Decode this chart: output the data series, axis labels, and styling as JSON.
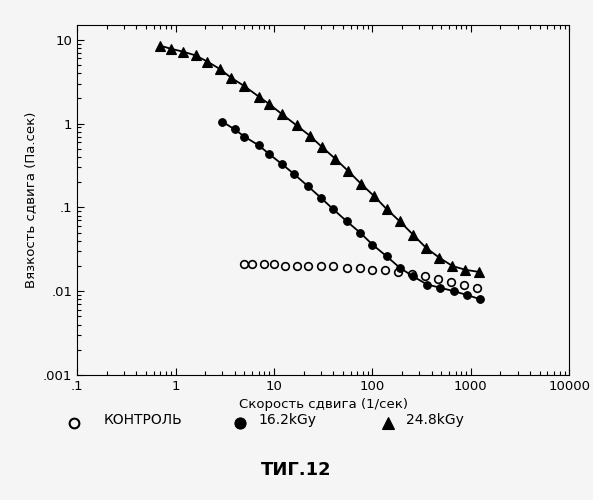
{
  "title": "ΤИГ.12",
  "xlabel": "Скорость сдвига (1/сек)",
  "ylabel": "Вязкость сдвига (Па.сек)",
  "xlim": [
    0.1,
    10000
  ],
  "ylim": [
    0.001,
    15
  ],
  "xticks": [
    0.1,
    1,
    10,
    100,
    1000,
    10000
  ],
  "xticklabels": [
    ".1",
    "1",
    "10",
    "100",
    "1000",
    "10000"
  ],
  "yticks": [
    0.001,
    0.01,
    0.1,
    1,
    10
  ],
  "yticklabels": [
    ".001",
    ".01",
    ".1",
    "1",
    "10"
  ],
  "series_control": {
    "x": [
      5,
      6,
      8,
      10,
      13,
      17,
      22,
      30,
      40,
      55,
      75,
      100,
      135,
      180,
      250,
      340,
      460,
      630,
      850,
      1150
    ],
    "y": [
      0.021,
      0.021,
      0.021,
      0.021,
      0.02,
      0.02,
      0.02,
      0.02,
      0.02,
      0.019,
      0.019,
      0.018,
      0.018,
      0.017,
      0.016,
      0.015,
      0.014,
      0.013,
      0.012,
      0.011
    ],
    "label": "КОНТРОЛЬ",
    "marker": "o",
    "fillstyle": "none",
    "color": "#000000",
    "linestyle": "none"
  },
  "series_16k": {
    "x": [
      3,
      4,
      5,
      7,
      9,
      12,
      16,
      22,
      30,
      40,
      55,
      75,
      100,
      140,
      190,
      260,
      360,
      490,
      670,
      920,
      1250
    ],
    "y": [
      1.05,
      0.85,
      0.7,
      0.55,
      0.43,
      0.33,
      0.25,
      0.18,
      0.13,
      0.095,
      0.068,
      0.05,
      0.036,
      0.026,
      0.019,
      0.015,
      0.012,
      0.011,
      0.01,
      0.009,
      0.008
    ],
    "label": "16.2kGy",
    "marker": "o",
    "fillstyle": "full",
    "color": "#000000",
    "linestyle": "-"
  },
  "series_248k": {
    "x": [
      0.7,
      0.9,
      1.2,
      1.6,
      2.1,
      2.8,
      3.7,
      5,
      7,
      9,
      12,
      17,
      23,
      31,
      42,
      57,
      77,
      105,
      140,
      190,
      260,
      350,
      480,
      650,
      880,
      1200
    ],
    "y": [
      8.5,
      7.8,
      7.2,
      6.5,
      5.5,
      4.5,
      3.5,
      2.8,
      2.1,
      1.7,
      1.3,
      0.95,
      0.72,
      0.52,
      0.38,
      0.27,
      0.19,
      0.135,
      0.095,
      0.068,
      0.047,
      0.033,
      0.025,
      0.02,
      0.018,
      0.017
    ],
    "label": "24.8kGy",
    "marker": "^",
    "fillstyle": "full",
    "color": "#000000",
    "linestyle": "-"
  },
  "bg_color": "#f5f5f5",
  "font_color": "#000000"
}
